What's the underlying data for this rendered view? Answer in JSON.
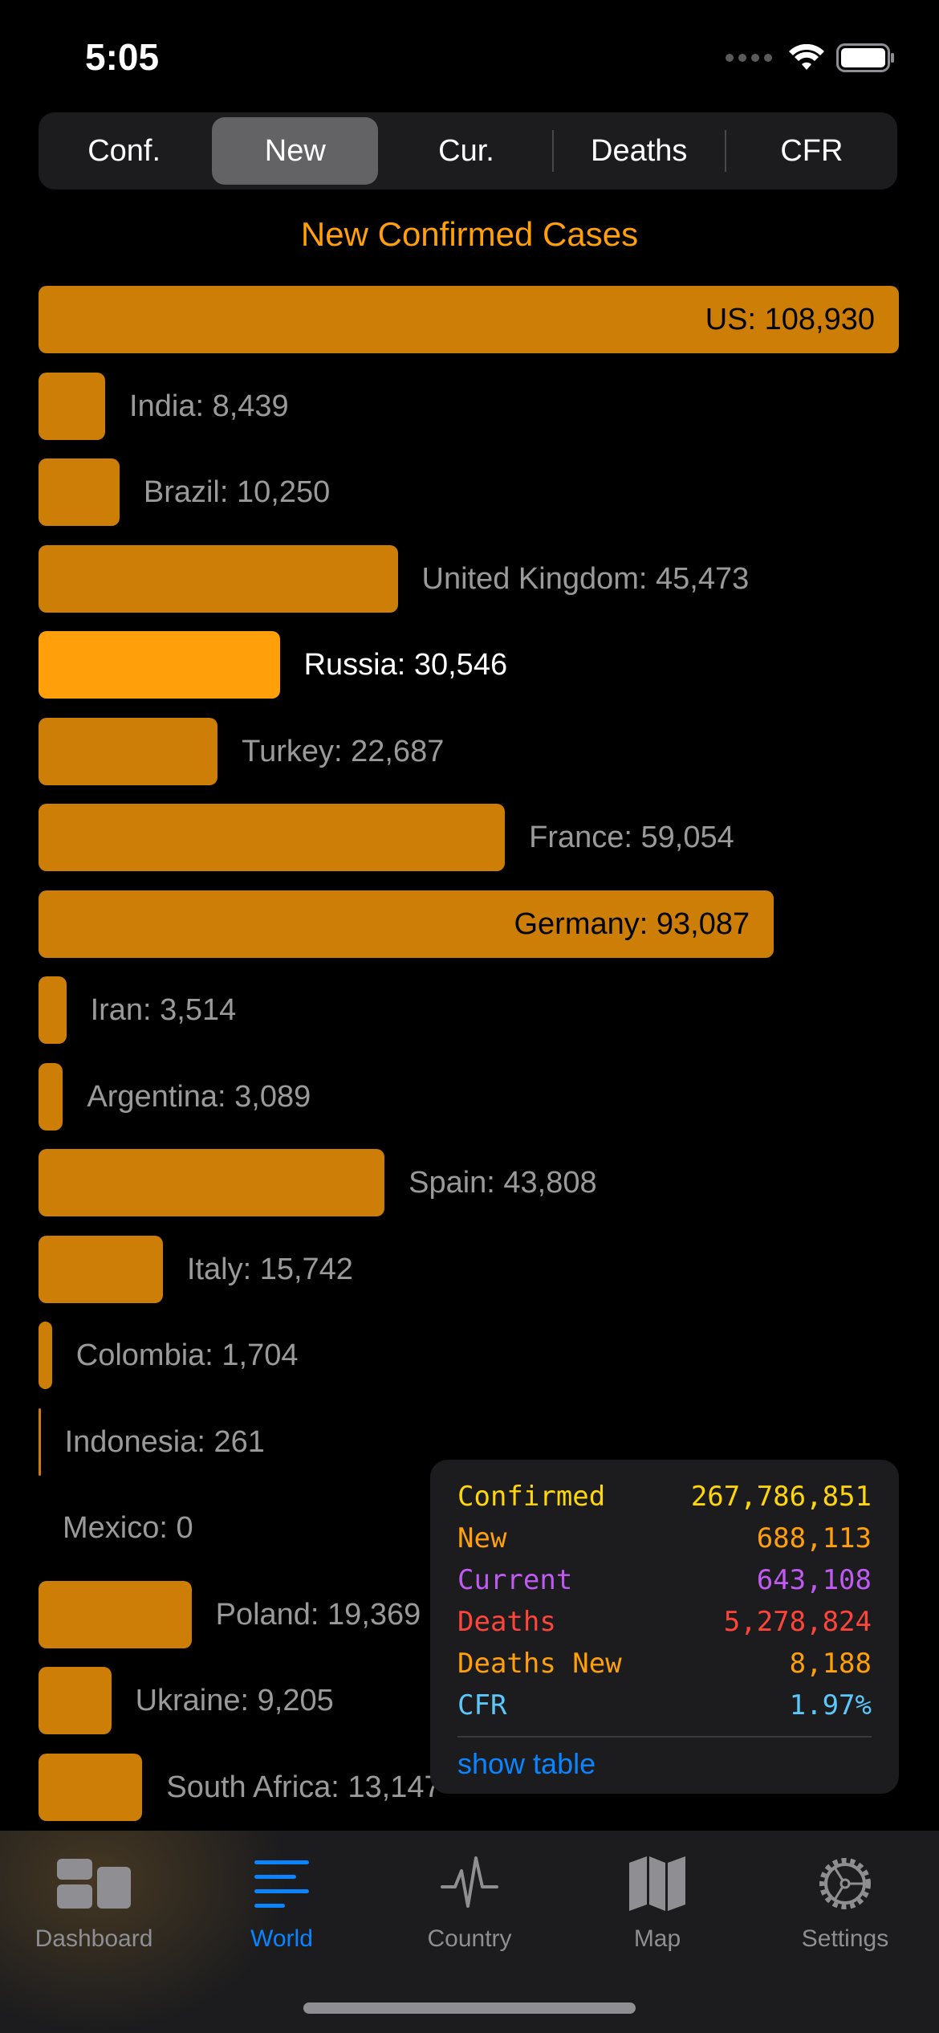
{
  "status_bar": {
    "time": "5:05"
  },
  "segments": [
    {
      "label": "Conf.",
      "active": false
    },
    {
      "label": "New",
      "active": true
    },
    {
      "label": "Cur.",
      "active": false
    },
    {
      "label": "Deaths",
      "active": false
    },
    {
      "label": "CFR",
      "active": false
    }
  ],
  "chart_data": {
    "type": "bar",
    "orientation": "horizontal",
    "title": "New Confirmed Cases",
    "highlighted": "Russia",
    "categories": [
      "US",
      "India",
      "Brazil",
      "United Kingdom",
      "Russia",
      "Turkey",
      "France",
      "Germany",
      "Iran",
      "Argentina",
      "Spain",
      "Italy",
      "Colombia",
      "Indonesia",
      "Mexico",
      "Poland",
      "Ukraine",
      "South Africa"
    ],
    "values": [
      108930,
      8439,
      10250,
      45473,
      30546,
      22687,
      59054,
      93087,
      3514,
      3089,
      43808,
      15742,
      1704,
      261,
      0,
      19369,
      9205,
      13147
    ],
    "labels": [
      "US: 108,930",
      "India: 8,439",
      "Brazil: 10,250",
      "United Kingdom: 45,473",
      "Russia: 30,546",
      "Turkey: 22,687",
      "France: 59,054",
      "Germany: 93,087",
      "Iran: 3,514",
      "Argentina: 3,089",
      "Spain: 43,808",
      "Italy: 15,742",
      "Colombia: 1,704",
      "Indonesia: 261",
      "Mexico: 0",
      "Poland: 19,369",
      "Ukraine: 9,205",
      "South Africa: 13,147"
    ],
    "bar_color": "#cc7e06",
    "highlight_color": "#ff9f0a"
  },
  "stats": [
    {
      "label": "Confirmed",
      "value": "267,786,851",
      "color": "#ffd60a"
    },
    {
      "label": "New",
      "value": "688,113",
      "color": "#ff9f0a"
    },
    {
      "label": "Current",
      "value": "643,108",
      "color": "#bf5af2"
    },
    {
      "label": "Deaths",
      "value": "5,278,824",
      "color": "#ff453a"
    },
    {
      "label": "Deaths New",
      "value": "8,188",
      "color": "#ff9f0a"
    },
    {
      "label": "CFR",
      "value": "1.97%",
      "color": "#5ac8fa"
    }
  ],
  "show_table_label": "show table",
  "tabs": [
    {
      "label": "Dashboard",
      "icon": "dashboard-icon",
      "active": false
    },
    {
      "label": "World",
      "icon": "list-icon",
      "active": true
    },
    {
      "label": "Country",
      "icon": "pulse-icon",
      "active": false
    },
    {
      "label": "Map",
      "icon": "map-icon",
      "active": false
    },
    {
      "label": "Settings",
      "icon": "gear-icon",
      "active": false
    }
  ]
}
